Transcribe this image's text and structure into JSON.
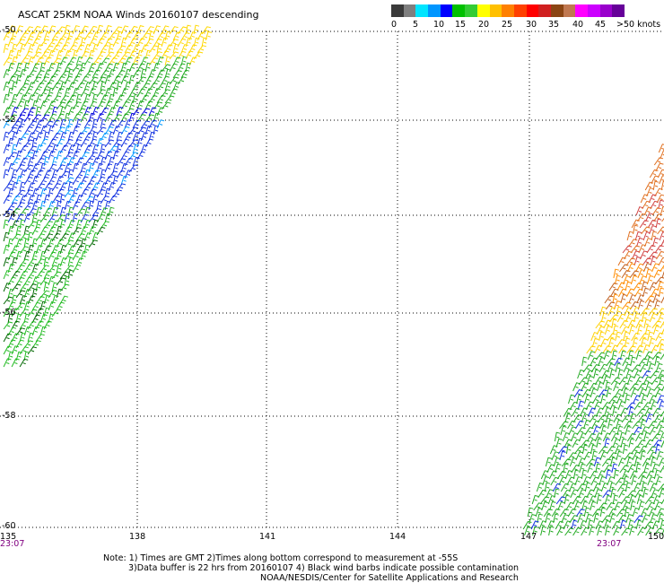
{
  "title": "ASCAT 25KM NOAA Winds 20160107 descending",
  "legend": {
    "labels": [
      "0",
      "5",
      "10",
      "15",
      "20",
      "25",
      "30",
      "35",
      "40",
      "45",
      ">50 knots"
    ],
    "colors": [
      "#3a3a3a",
      "#7f7f7f",
      "#00e5ff",
      "#0096ff",
      "#0000ff",
      "#00c000",
      "#33cc33",
      "#ffff00",
      "#ffc000",
      "#ff8000",
      "#ff4000",
      "#ff0000",
      "#d02020",
      "#8b4513",
      "#c07850",
      "#ff00ff",
      "#cc00ff",
      "#9900cc",
      "#660099"
    ]
  },
  "axes": {
    "lon_ticks": [
      "135",
      "138",
      "141",
      "144",
      "147",
      "150"
    ],
    "lat_ticks": [
      "-50",
      "-52",
      "-54",
      "-56",
      "-58",
      "-60"
    ]
  },
  "times": [
    "23:07",
    "23:07"
  ],
  "notes": [
    "Note: 1) Times are GMT 2)Times along bottom correspond to measurement at -55S",
    "3)Data buffer is 22 hrs from 20160107 4) Black wind barbs indicate possible contamination",
    "NOAA/NESDIS/Center for Satellite Applications and Research"
  ]
}
